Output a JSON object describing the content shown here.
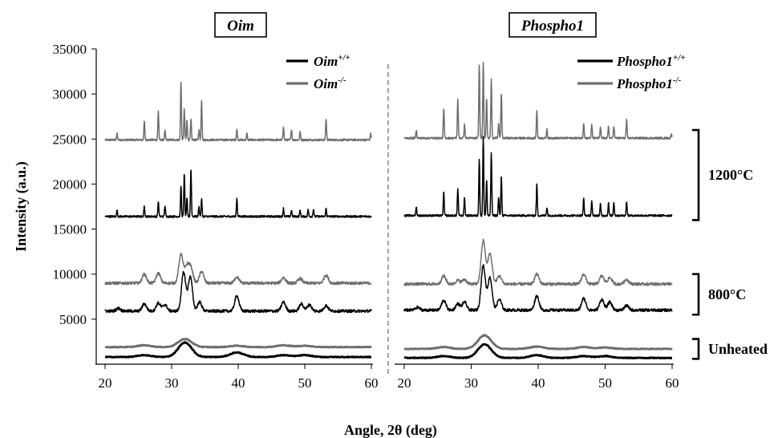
{
  "chart_data": {
    "type": "line",
    "ylabel": "Intensity (a.u.)",
    "xlabel": "Angle, 2θ (deg)",
    "ylim": [
      0,
      35000
    ],
    "yticks": [
      5000,
      10000,
      15000,
      20000,
      25000,
      30000,
      35000
    ],
    "xlim": [
      20,
      60
    ],
    "xticks": [
      20,
      30,
      40,
      50,
      60
    ],
    "grid": false,
    "colors": {
      "wt": "#000000",
      "ko": "#6e6e6e",
      "divider": "#a8a8a8"
    },
    "groups": [
      {
        "label": "1200°C",
        "range": [
          16000,
          26000
        ]
      },
      {
        "label": "800°C",
        "range": [
          5500,
          10000
        ]
      },
      {
        "label": "Unheated",
        "range": [
          600,
          2800
        ]
      }
    ],
    "panels": [
      {
        "title": "Oim",
        "legend": [
          {
            "base": "Oim",
            "sup": "+/+",
            "genotype": "wt"
          },
          {
            "base": "Oim",
            "sup": "-/-",
            "genotype": "ko"
          }
        ],
        "series": [
          {
            "genotype": "ko",
            "condition": "1200°C",
            "baseline": 24900,
            "peaks": [
              [
                21.8,
                700
              ],
              [
                25.9,
                2100
              ],
              [
                28.0,
                3200
              ],
              [
                29.0,
                1000
              ],
              [
                31.4,
                6500
              ],
              [
                31.9,
                3500
              ],
              [
                32.3,
                2200
              ],
              [
                32.9,
                2300
              ],
              [
                34.1,
                1100
              ],
              [
                34.5,
                4500
              ],
              [
                39.8,
                1100
              ],
              [
                41.3,
                700
              ],
              [
                46.8,
                1500
              ],
              [
                48.0,
                1200
              ],
              [
                49.3,
                900
              ],
              [
                53.2,
                2300
              ],
              [
                59.9,
                700
              ]
            ]
          },
          {
            "genotype": "wt",
            "condition": "1200°C",
            "baseline": 16400,
            "peaks": [
              [
                21.8,
                700
              ],
              [
                25.9,
                1200
              ],
              [
                28.0,
                1700
              ],
              [
                29.0,
                1200
              ],
              [
                31.4,
                3400
              ],
              [
                31.9,
                4900
              ],
              [
                32.3,
                2000
              ],
              [
                32.9,
                5300
              ],
              [
                34.1,
                1100
              ],
              [
                34.5,
                2000
              ],
              [
                39.8,
                2000
              ],
              [
                46.8,
                900
              ],
              [
                48.0,
                700
              ],
              [
                49.3,
                700
              ],
              [
                50.5,
                800
              ],
              [
                51.3,
                800
              ],
              [
                53.2,
                900
              ]
            ]
          },
          {
            "genotype": "ko",
            "condition": "800°C",
            "baseline": 9000,
            "peaks": [
              [
                25.9,
                1000
              ],
              [
                28.0,
                1100
              ],
              [
                31.4,
                3200
              ],
              [
                32.3,
                1800
              ],
              [
                32.9,
                1600
              ],
              [
                34.5,
                1300
              ],
              [
                39.8,
                700
              ],
              [
                46.8,
                600
              ],
              [
                49.3,
                500
              ],
              [
                53.2,
                900
              ]
            ]
          },
          {
            "genotype": "wt",
            "condition": "800°C",
            "baseline": 5900,
            "peaks": [
              [
                22.0,
                300
              ],
              [
                25.9,
                800
              ],
              [
                28.0,
                900
              ],
              [
                29.0,
                700
              ],
              [
                31.8,
                4300
              ],
              [
                32.8,
                3800
              ],
              [
                34.2,
                1000
              ],
              [
                39.8,
                1700
              ],
              [
                46.8,
                1000
              ],
              [
                49.5,
                800
              ],
              [
                50.7,
                700
              ],
              [
                53.2,
                600
              ]
            ]
          },
          {
            "genotype": "ko",
            "condition": "Unheated",
            "baseline": 1900,
            "peaks": [
              [
                25.9,
                200
              ],
              [
                32.0,
                900
              ],
              [
                39.8,
                150
              ],
              [
                46.8,
                200
              ],
              [
                50.0,
                150
              ]
            ]
          },
          {
            "genotype": "wt",
            "condition": "Unheated",
            "baseline": 800,
            "peaks": [
              [
                25.9,
                200
              ],
              [
                32.0,
                1600
              ],
              [
                39.8,
                500
              ],
              [
                46.8,
                200
              ],
              [
                50.0,
                200
              ]
            ]
          }
        ]
      },
      {
        "title": "Phospho1",
        "legend": [
          {
            "base": "Phospho1",
            "sup": "+/+",
            "genotype": "wt"
          },
          {
            "base": "Phospho1",
            "sup": "-/-",
            "genotype": "ko"
          }
        ],
        "series": [
          {
            "genotype": "ko",
            "condition": "1200°C",
            "baseline": 25100,
            "peaks": [
              [
                21.8,
                900
              ],
              [
                25.9,
                3300
              ],
              [
                28.0,
                4400
              ],
              [
                29.0,
                1500
              ],
              [
                31.2,
                8200
              ],
              [
                31.8,
                8500
              ],
              [
                32.3,
                4500
              ],
              [
                33.0,
                6500
              ],
              [
                34.1,
                1600
              ],
              [
                34.5,
                5000
              ],
              [
                39.8,
                3000
              ],
              [
                41.3,
                1000
              ],
              [
                46.8,
                1700
              ],
              [
                48.0,
                1500
              ],
              [
                49.3,
                1200
              ],
              [
                50.5,
                1300
              ],
              [
                51.3,
                1400
              ],
              [
                53.2,
                2000
              ],
              [
                59.9,
                500
              ]
            ]
          },
          {
            "genotype": "wt",
            "condition": "1200°C",
            "baseline": 16500,
            "peaks": [
              [
                21.8,
                1000
              ],
              [
                25.9,
                2600
              ],
              [
                28.0,
                3000
              ],
              [
                29.0,
                2000
              ],
              [
                31.2,
                6300
              ],
              [
                31.8,
                8800
              ],
              [
                32.3,
                4000
              ],
              [
                33.0,
                7000
              ],
              [
                34.1,
                2000
              ],
              [
                34.5,
                4500
              ],
              [
                39.8,
                3500
              ],
              [
                41.3,
                900
              ],
              [
                46.8,
                1900
              ],
              [
                48.0,
                1600
              ],
              [
                49.3,
                1300
              ],
              [
                50.5,
                1400
              ],
              [
                51.3,
                1500
              ],
              [
                53.2,
                1600
              ]
            ]
          },
          {
            "genotype": "ko",
            "condition": "800°C",
            "baseline": 8900,
            "peaks": [
              [
                25.9,
                900
              ],
              [
                28.0,
                400
              ],
              [
                29.0,
                500
              ],
              [
                31.8,
                4800
              ],
              [
                32.8,
                3400
              ],
              [
                34.2,
                900
              ],
              [
                39.8,
                1100
              ],
              [
                46.8,
                1100
              ],
              [
                49.5,
                900
              ],
              [
                50.7,
                700
              ],
              [
                53.2,
                500
              ]
            ]
          },
          {
            "genotype": "wt",
            "condition": "800°C",
            "baseline": 6000,
            "peaks": [
              [
                22.0,
                300
              ],
              [
                25.9,
                1100
              ],
              [
                28.0,
                700
              ],
              [
                29.0,
                900
              ],
              [
                31.8,
                4900
              ],
              [
                32.8,
                3600
              ],
              [
                34.2,
                1200
              ],
              [
                39.8,
                1600
              ],
              [
                46.8,
                1300
              ],
              [
                49.5,
                1200
              ],
              [
                50.7,
                900
              ],
              [
                53.2,
                500
              ]
            ]
          },
          {
            "genotype": "ko",
            "condition": "Unheated",
            "baseline": 1700,
            "peaks": [
              [
                25.9,
                200
              ],
              [
                32.0,
                1500
              ],
              [
                39.8,
                250
              ],
              [
                46.8,
                200
              ],
              [
                50.0,
                150
              ]
            ]
          },
          {
            "genotype": "wt",
            "condition": "Unheated",
            "baseline": 700,
            "peaks": [
              [
                25.9,
                200
              ],
              [
                32.0,
                1500
              ],
              [
                39.8,
                300
              ],
              [
                46.8,
                200
              ],
              [
                50.0,
                200
              ]
            ]
          }
        ]
      }
    ]
  }
}
